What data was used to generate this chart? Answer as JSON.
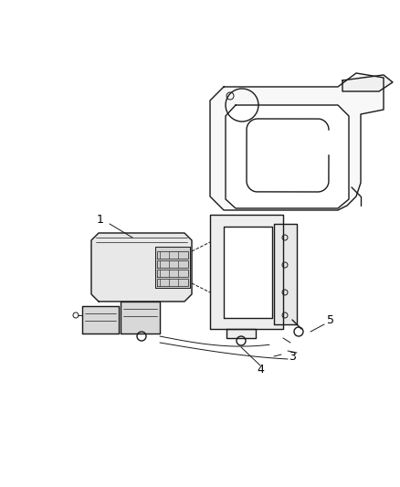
{
  "background_color": "#ffffff",
  "line_color": "#1a1a1a",
  "label_color": "#000000",
  "fig_width": 4.39,
  "fig_height": 5.33,
  "dpi": 100
}
